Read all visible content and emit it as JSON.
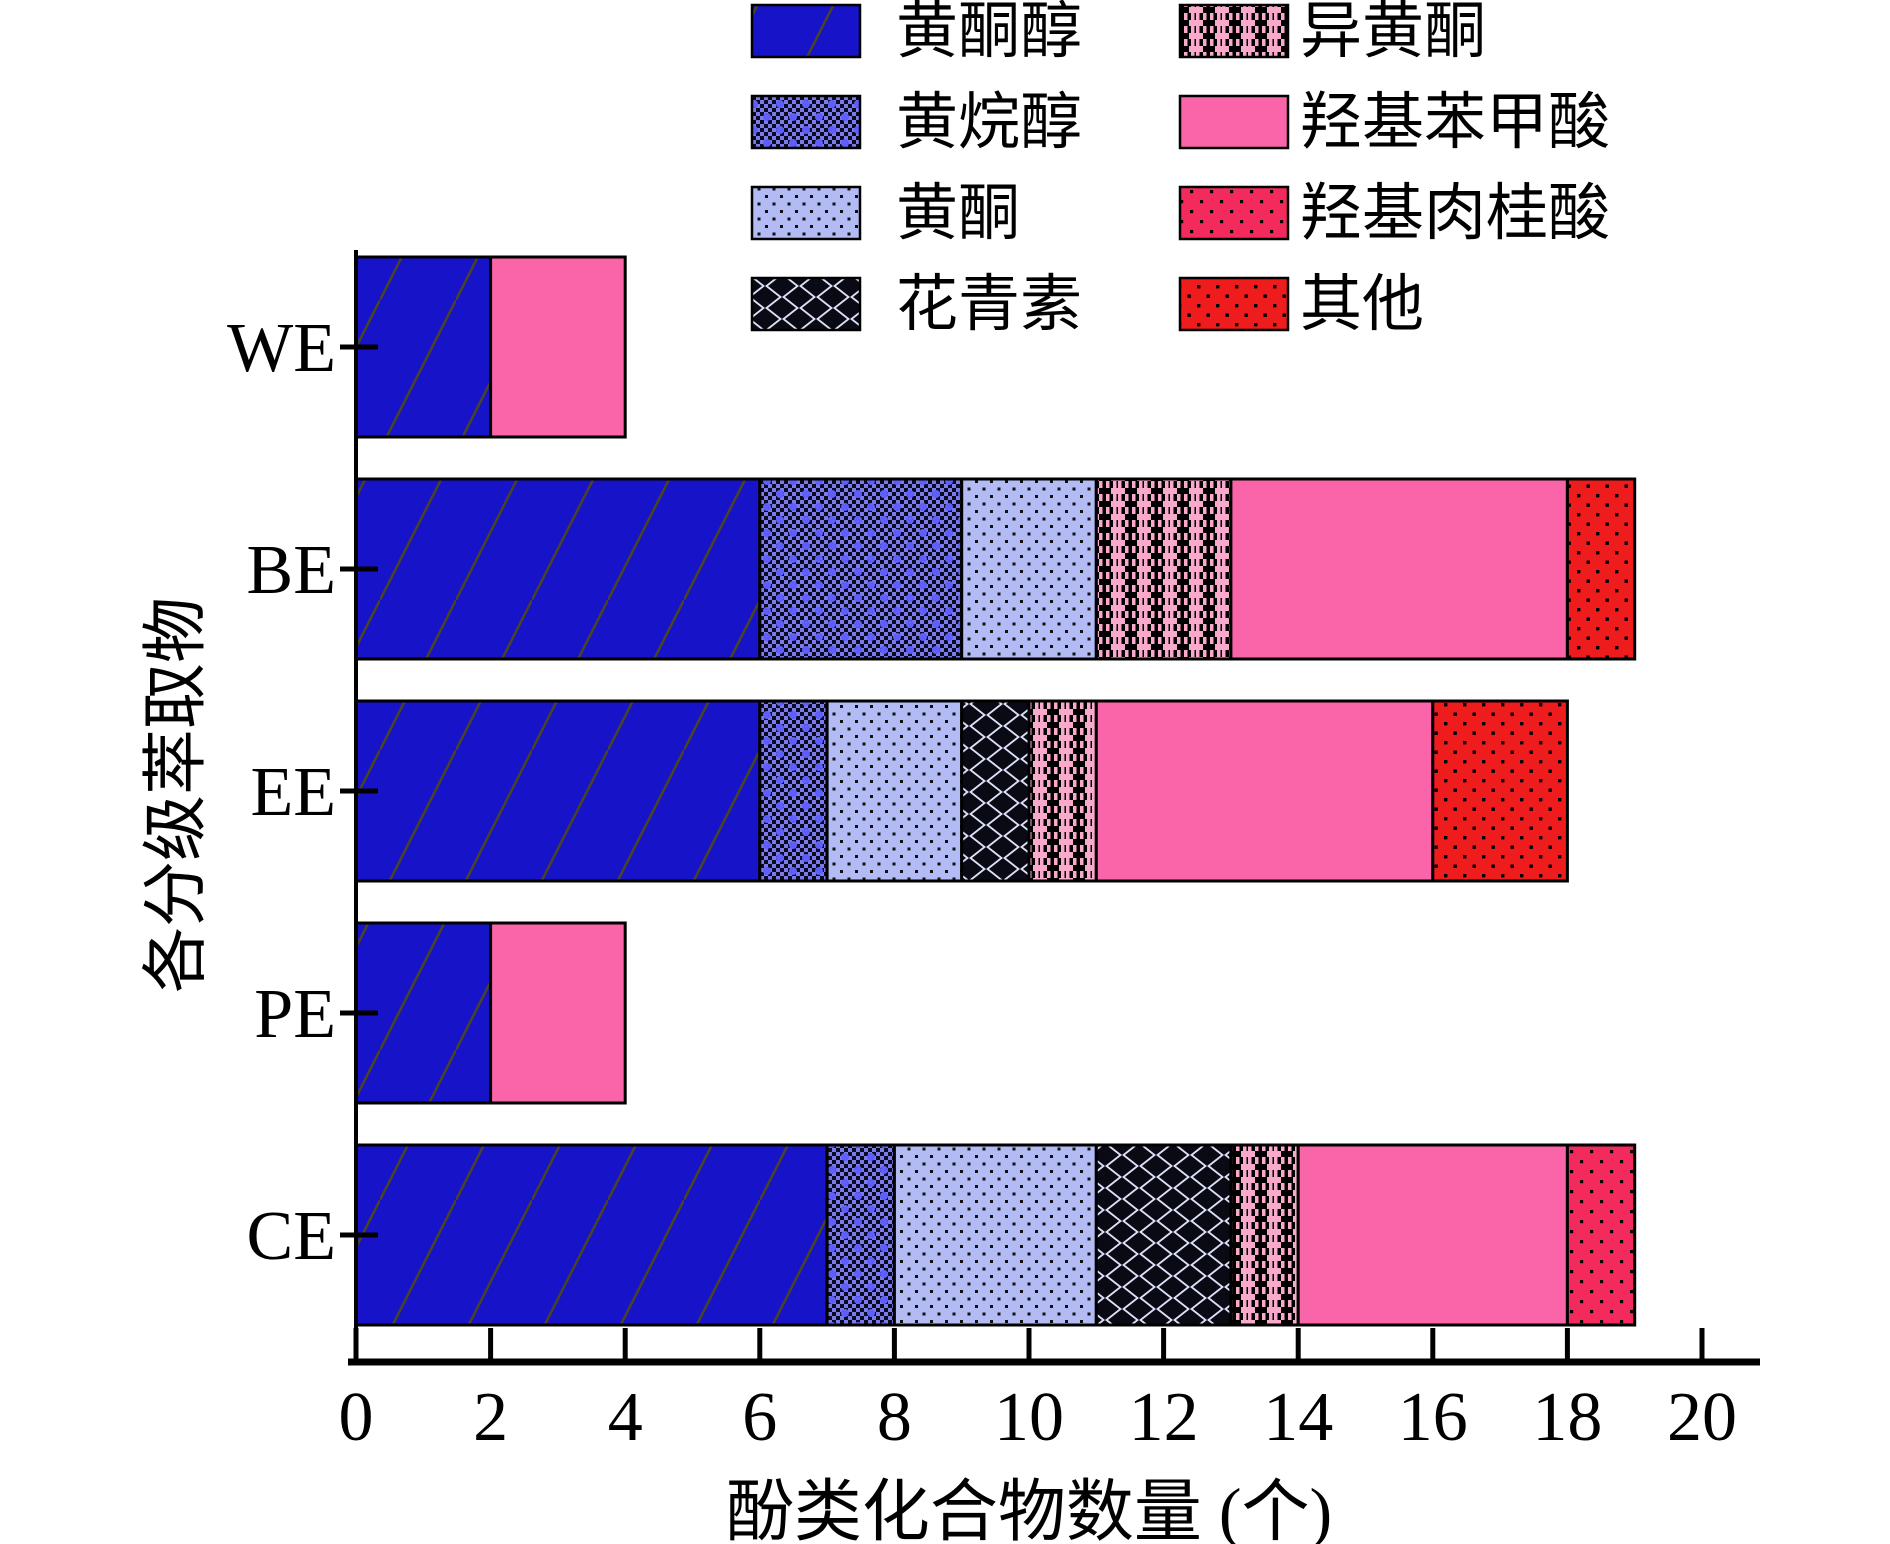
{
  "chart_data": {
    "type": "bar",
    "orientation": "horizontal",
    "stacked": true,
    "title": "",
    "xlabel": "酚类化合物数量 (个)",
    "ylabel": "各分级萃取物",
    "xlim": [
      0,
      20
    ],
    "xticks": [
      0,
      2,
      4,
      6,
      8,
      10,
      12,
      14,
      16,
      18,
      20
    ],
    "grid": false,
    "legend_position": "top",
    "categories": [
      "WE",
      "BE",
      "EE",
      "PE",
      "CE"
    ],
    "series": [
      {
        "name": "黄酮醇",
        "pattern": "flavonol",
        "color": "#1713c9",
        "values": [
          2,
          6,
          6,
          2,
          7
        ]
      },
      {
        "name": "黄烷醇",
        "pattern": "flavanol",
        "color": "#7a7ae8",
        "values": [
          0,
          3,
          1,
          0,
          1
        ]
      },
      {
        "name": "黄酮",
        "pattern": "flavone",
        "color": "#b2bbf4",
        "values": [
          0,
          2,
          2,
          0,
          3
        ]
      },
      {
        "name": "花青素",
        "pattern": "anthocyanin",
        "color": "#dde2f8",
        "values": [
          0,
          0,
          1,
          0,
          2
        ]
      },
      {
        "name": "异黄酮",
        "pattern": "isoflavone",
        "color": "#f9a9cc",
        "values": [
          0,
          2,
          1,
          0,
          1
        ]
      },
      {
        "name": "羟基苯甲酸",
        "pattern": "hydroxybenzoic",
        "color": "#fa64a8",
        "values": [
          2,
          5,
          5,
          2,
          4
        ]
      },
      {
        "name": "羟基肉桂酸",
        "pattern": "hydroxycinnamic",
        "color": "#f42a5c",
        "values": [
          0,
          0,
          0,
          0,
          1
        ]
      },
      {
        "name": "其他",
        "pattern": "other",
        "color": "#ee1c1c",
        "values": [
          0,
          1,
          2,
          0,
          0
        ]
      }
    ],
    "totals": {
      "WE": 4,
      "BE": 19,
      "EE": 18,
      "PE": 4,
      "CE": 19
    }
  },
  "legend": {
    "columns": [
      [
        "黄酮醇",
        "黄烷醇",
        "黄酮",
        "花青素"
      ],
      [
        "异黄酮",
        "羟基苯甲酸",
        "羟基肉桂酸",
        "其他"
      ]
    ]
  }
}
